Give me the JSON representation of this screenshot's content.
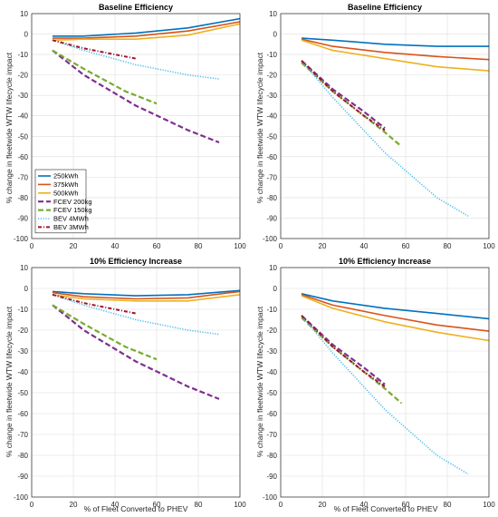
{
  "figure": {
    "ylabel": "% change in fleetwide WTW lifecycle impact",
    "xlabel": "% of Fleet Converted to PHEV"
  },
  "legend": [
    {
      "name": "250kWh",
      "color": "#0072BD",
      "dash": "solid"
    },
    {
      "name": "375kWh",
      "color": "#D95319",
      "dash": "solid"
    },
    {
      "name": "500kWh",
      "color": "#EDB120",
      "dash": "solid"
    },
    {
      "name": "FCEV 200kg",
      "color": "#7E2F8E",
      "dash": "dashed"
    },
    {
      "name": "FCEV 150kg",
      "color": "#77AC30",
      "dash": "dashed"
    },
    {
      "name": "BEV 4MWh",
      "color": "#4DBEEE",
      "dash": "dotted"
    },
    {
      "name": "BEV 3MWh",
      "color": "#A2142F",
      "dash": "dashdot"
    }
  ],
  "chart_data": [
    {
      "type": "line",
      "title": "Baseline Efficiency",
      "xlim": [
        0,
        100
      ],
      "ylim": [
        -100,
        10
      ],
      "xticks": [
        "0",
        "20",
        "40",
        "60",
        "80",
        "100"
      ],
      "yticks": [
        "10",
        "0",
        "-10",
        "-20",
        "-30",
        "-40",
        "-50",
        "-60",
        "-70",
        "-80",
        "-90",
        "-100"
      ],
      "grid": true,
      "legend_position": "lower-left",
      "series": [
        {
          "name": "250kWh",
          "x": [
            10,
            25,
            50,
            75,
            100
          ],
          "y": [
            -1,
            -1,
            0.5,
            3,
            7.5
          ]
        },
        {
          "name": "375kWh",
          "x": [
            10,
            25,
            50,
            75,
            100
          ],
          "y": [
            -2,
            -2,
            -1,
            1.5,
            6
          ]
        },
        {
          "name": "500kWh",
          "x": [
            10,
            25,
            50,
            75,
            100
          ],
          "y": [
            -3,
            -2.5,
            -2.5,
            -0.5,
            5
          ]
        },
        {
          "name": "FCEV 200kg",
          "x": [
            10,
            25,
            50,
            75,
            90
          ],
          "y": [
            -8,
            -20,
            -35,
            -47,
            -53
          ]
        },
        {
          "name": "FCEV 150kg",
          "x": [
            10,
            25,
            45,
            60
          ],
          "y": [
            -8,
            -17,
            -28,
            -34
          ]
        },
        {
          "name": "BEV 4MWh",
          "x": [
            10,
            25,
            50,
            75,
            90
          ],
          "y": [
            -3,
            -8,
            -15,
            -20,
            -22
          ]
        },
        {
          "name": "BEV 3MWh",
          "x": [
            10,
            25,
            40,
            50
          ],
          "y": [
            -3,
            -7,
            -10,
            -12
          ]
        }
      ]
    },
    {
      "type": "line",
      "title": "Baseline Efficiency",
      "xlim": [
        0,
        100
      ],
      "ylim": [
        -100,
        10
      ],
      "xticks": [
        "0",
        "20",
        "40",
        "60",
        "80",
        "100"
      ],
      "yticks": [
        "10",
        "0",
        "-10",
        "-20",
        "-30",
        "-40",
        "-50",
        "-60",
        "-70",
        "-80",
        "-90",
        "-100"
      ],
      "grid": true,
      "series": [
        {
          "name": "250kWh",
          "x": [
            10,
            25,
            50,
            75,
            100
          ],
          "y": [
            -2,
            -3,
            -5,
            -6,
            -6
          ]
        },
        {
          "name": "375kWh",
          "x": [
            10,
            25,
            50,
            75,
            100
          ],
          "y": [
            -2.5,
            -6,
            -9,
            -11,
            -12.5
          ]
        },
        {
          "name": "500kWh",
          "x": [
            10,
            25,
            50,
            75,
            100
          ],
          "y": [
            -3,
            -8,
            -12,
            -16,
            -18
          ]
        },
        {
          "name": "FCEV 200kg",
          "x": [
            10,
            25,
            40,
            50
          ],
          "y": [
            -13,
            -27,
            -38,
            -46
          ]
        },
        {
          "name": "FCEV 150kg",
          "x": [
            10,
            25,
            40,
            50,
            58
          ],
          "y": [
            -14,
            -28,
            -40,
            -48,
            -55
          ]
        },
        {
          "name": "BEV 4MWh",
          "x": [
            10,
            25,
            50,
            75,
            90
          ],
          "y": [
            -13,
            -31,
            -58,
            -80,
            -89
          ]
        },
        {
          "name": "BEV 3MWh",
          "x": [
            10,
            25,
            40,
            50
          ],
          "y": [
            -13,
            -28,
            -40,
            -47
          ]
        }
      ]
    },
    {
      "type": "line",
      "title": "10% Efficiency Increase",
      "xlim": [
        0,
        100
      ],
      "ylim": [
        -100,
        10
      ],
      "xticks": [
        "0",
        "20",
        "40",
        "60",
        "80",
        "100"
      ],
      "yticks": [
        "10",
        "0",
        "-10",
        "-20",
        "-30",
        "-40",
        "-50",
        "-60",
        "-70",
        "-80",
        "-90",
        "-100"
      ],
      "grid": true,
      "series": [
        {
          "name": "250kWh",
          "x": [
            10,
            25,
            50,
            75,
            100
          ],
          "y": [
            -1.5,
            -2.5,
            -3.5,
            -3,
            -1
          ]
        },
        {
          "name": "375kWh",
          "x": [
            10,
            25,
            50,
            75,
            100
          ],
          "y": [
            -2,
            -4,
            -5,
            -4.5,
            -1.5
          ]
        },
        {
          "name": "500kWh",
          "x": [
            10,
            25,
            50,
            75,
            100
          ],
          "y": [
            -3,
            -5,
            -6,
            -6,
            -3
          ]
        },
        {
          "name": "FCEV 200kg",
          "x": [
            10,
            25,
            50,
            75,
            90
          ],
          "y": [
            -8,
            -20,
            -35,
            -47,
            -53
          ]
        },
        {
          "name": "FCEV 150kg",
          "x": [
            10,
            25,
            45,
            60
          ],
          "y": [
            -8,
            -17,
            -28,
            -34
          ]
        },
        {
          "name": "BEV 4MWh",
          "x": [
            10,
            25,
            50,
            75,
            90
          ],
          "y": [
            -3,
            -8,
            -15,
            -20,
            -22
          ]
        },
        {
          "name": "BEV 3MWh",
          "x": [
            10,
            25,
            40,
            50
          ],
          "y": [
            -3,
            -7,
            -10,
            -12
          ]
        }
      ]
    },
    {
      "type": "line",
      "title": "10% Efficiency Increase",
      "xlim": [
        0,
        100
      ],
      "ylim": [
        -100,
        10
      ],
      "xticks": [
        "0",
        "20",
        "40",
        "60",
        "80",
        "100"
      ],
      "yticks": [
        "10",
        "0",
        "-10",
        "-20",
        "-30",
        "-40",
        "-50",
        "-60",
        "-70",
        "-80",
        "-90",
        "-100"
      ],
      "grid": true,
      "series": [
        {
          "name": "250kWh",
          "x": [
            10,
            25,
            50,
            75,
            100
          ],
          "y": [
            -2.5,
            -6,
            -9.5,
            -12,
            -14.5
          ]
        },
        {
          "name": "375kWh",
          "x": [
            10,
            25,
            50,
            75,
            100
          ],
          "y": [
            -3,
            -8,
            -13,
            -17.5,
            -20.5
          ]
        },
        {
          "name": "500kWh",
          "x": [
            10,
            25,
            50,
            75,
            100
          ],
          "y": [
            -3.5,
            -9.5,
            -16,
            -21,
            -25
          ]
        },
        {
          "name": "FCEV 200kg",
          "x": [
            10,
            25,
            40,
            50
          ],
          "y": [
            -13,
            -27,
            -38,
            -46
          ]
        },
        {
          "name": "FCEV 150kg",
          "x": [
            10,
            25,
            40,
            50,
            58
          ],
          "y": [
            -14,
            -28,
            -40,
            -48,
            -55
          ]
        },
        {
          "name": "BEV 4MWh",
          "x": [
            10,
            25,
            50,
            75,
            90
          ],
          "y": [
            -13,
            -31,
            -58,
            -80,
            -89
          ]
        },
        {
          "name": "BEV 3MWh",
          "x": [
            10,
            25,
            40,
            50
          ],
          "y": [
            -13,
            -28,
            -40,
            -47
          ]
        }
      ]
    }
  ]
}
